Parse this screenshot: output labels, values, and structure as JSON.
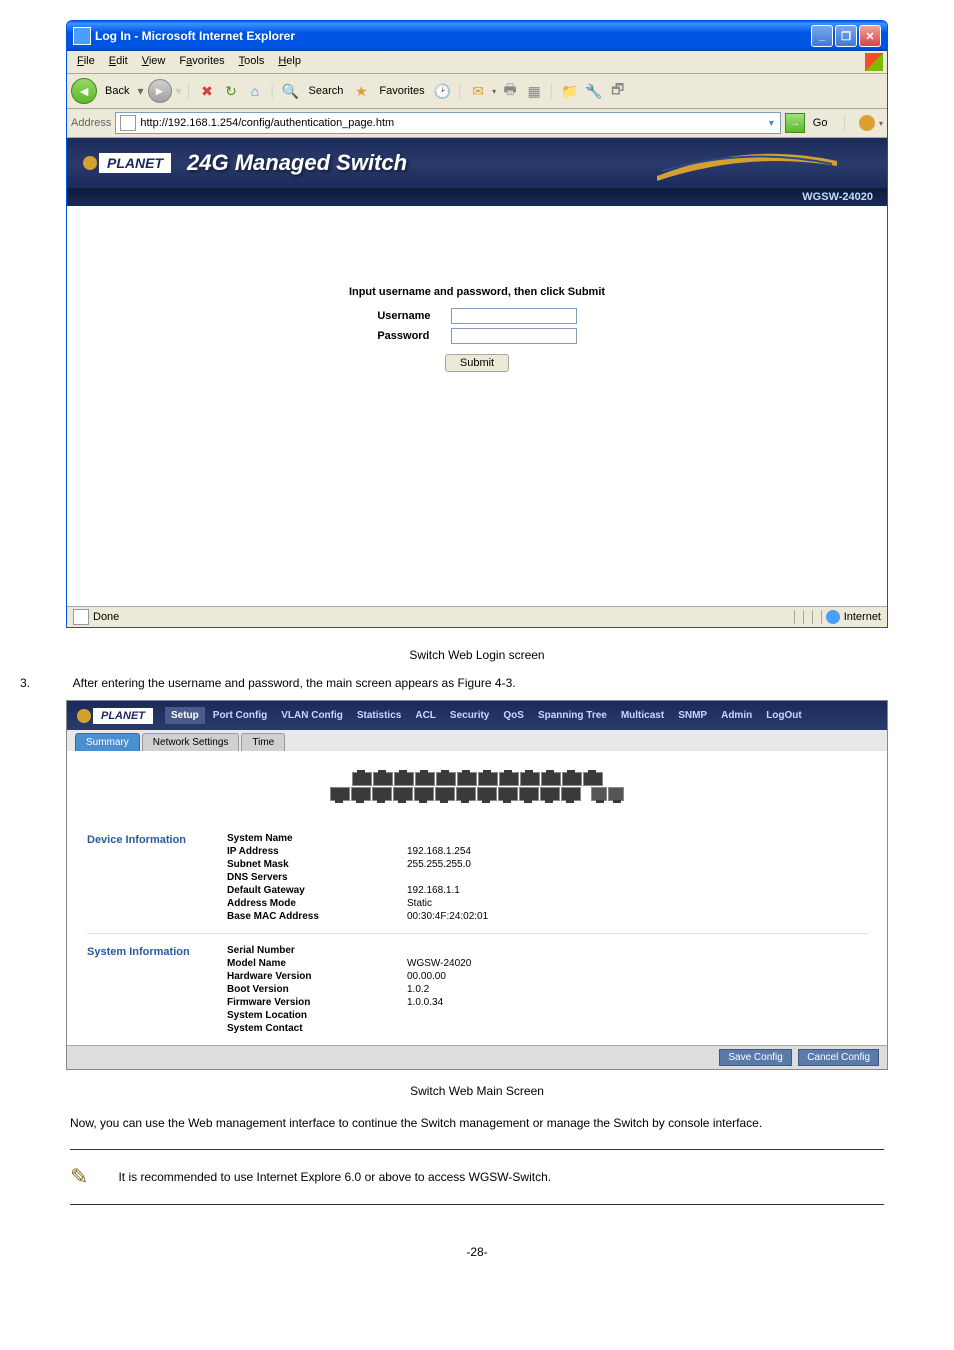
{
  "ieWindow": {
    "title": "Log In - Microsoft Internet Explorer",
    "menus": [
      "File",
      "Edit",
      "View",
      "Favorites",
      "Tools",
      "Help"
    ],
    "menuAccel": [
      "F",
      "E",
      "V",
      "a",
      "T",
      "H"
    ],
    "toolbar": {
      "back": "Back",
      "search": "Search",
      "favorites": "Favorites"
    },
    "addressLabel": "Address",
    "addressUrl": "http://192.168.1.254/config/authentication_page.htm",
    "goLabel": "Go"
  },
  "planet": {
    "logo": "PLANET",
    "title": "24G Managed Switch",
    "model": "WGSW-24020"
  },
  "login": {
    "prompt": "Input username and password, then click Submit",
    "userLabel": "Username",
    "passLabel": "Password",
    "submit": "Submit"
  },
  "status": {
    "done": "Done",
    "zone": "Internet"
  },
  "caption1": "Switch Web Login screen",
  "step": {
    "num": "3.",
    "text": "After entering the username and password, the main screen appears as Figure 4-3."
  },
  "mgmt": {
    "nav": [
      "Setup",
      "Port Config",
      "VLAN Config",
      "Statistics",
      "ACL",
      "Security",
      "QoS",
      "Spanning Tree",
      "Multicast",
      "SNMP",
      "Admin",
      "LogOut"
    ],
    "tabs": [
      "Summary",
      "Network Settings",
      "Time"
    ],
    "activeTab": 0,
    "sections": [
      {
        "title": "Device Information",
        "rows": [
          {
            "k": "System Name",
            "v": ""
          },
          {
            "k": "IP Address",
            "v": "192.168.1.254"
          },
          {
            "k": "Subnet Mask",
            "v": "255.255.255.0"
          },
          {
            "k": "DNS Servers",
            "v": ""
          },
          {
            "k": "Default Gateway",
            "v": "192.168.1.1"
          },
          {
            "k": "Address Mode",
            "v": "Static"
          },
          {
            "k": "Base MAC Address",
            "v": "00:30:4F:24:02:01"
          }
        ]
      },
      {
        "title": "System Information",
        "rows": [
          {
            "k": "Serial Number",
            "v": ""
          },
          {
            "k": "Model Name",
            "v": "WGSW-24020"
          },
          {
            "k": "Hardware Version",
            "v": "00.00.00"
          },
          {
            "k": "Boot Version",
            "v": "1.0.2"
          },
          {
            "k": "Firmware Version",
            "v": "1.0.0.34"
          },
          {
            "k": "System Location",
            "v": ""
          },
          {
            "k": "System Contact",
            "v": ""
          }
        ]
      }
    ],
    "saveBtn": "Save Config",
    "cancelBtn": "Cancel Config"
  },
  "caption2": "Switch Web Main Screen",
  "bodyText": "Now, you can use the Web management interface to continue the Switch management or manage the Switch by console interface.",
  "noteText": "It is recommended to use Internet Explore 6.0 or above to access WGSW-Switch.",
  "pageNum": "-28-"
}
